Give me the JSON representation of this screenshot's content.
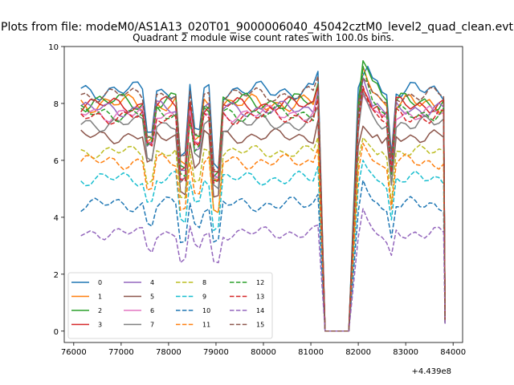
{
  "suptitle": "Plots from file: modeM0/AS1A13_020T01_9000006040_45042cztM0_level2_quad_clean.evt",
  "chart_data": {
    "type": "line",
    "title": "Quadrant 2 module wise count rates with 100.0s bins.",
    "xlabel": "",
    "ylabel": "",
    "x_offset_label": "+4.439e8",
    "x_offset": 443900000,
    "xlim": [
      75800,
      84200
    ],
    "ylim": [
      -0.4,
      10
    ],
    "xticks": [
      76000,
      77000,
      78000,
      79000,
      80000,
      81000,
      82000,
      83000,
      84000
    ],
    "xtick_labels": [
      "76000",
      "77000",
      "78000",
      "79000",
      "80000",
      "81000",
      "82000",
      "83000",
      "84000"
    ],
    "yticks": [
      0,
      2,
      4,
      6,
      8,
      10
    ],
    "ytick_labels": [
      "0",
      "2",
      "4",
      "6",
      "8",
      "10"
    ],
    "grid": false,
    "legend_position": "lower-left",
    "legend_columns": 4,
    "x_spec": {
      "segments": [
        [
          76150,
          81150,
          100
        ],
        [
          81300,
          81850,
          100
        ],
        [
          82000,
          83800,
          100
        ]
      ],
      "final": 83830
    },
    "gap_value": 0,
    "series": [
      {
        "name": "0",
        "color": "#1f77b4",
        "dash": "solid",
        "base": 8.45,
        "seg2": [
          8.55,
          9.0,
          9.3,
          8.9,
          8.8,
          8.4,
          8.3
        ],
        "final": 0.3,
        "wiggle": 0.25
      },
      {
        "name": "1",
        "color": "#ff7f0e",
        "dash": "solid",
        "base": 8.0,
        "seg2": [
          7.7,
          9.3,
          8.8,
          8.4,
          8.3,
          8.1,
          7.9
        ],
        "final": 0.4,
        "wiggle": 0.25
      },
      {
        "name": "2",
        "color": "#2ca02c",
        "dash": "solid",
        "base": 8.05,
        "seg2": [
          8.0,
          9.5,
          9.2,
          8.8,
          8.7,
          8.3,
          8.1
        ],
        "final": 0.3,
        "wiggle": 0.25
      },
      {
        "name": "3",
        "color": "#d62728",
        "dash": "solid",
        "base": 7.95,
        "seg2": [
          7.6,
          8.5,
          8.2,
          7.8,
          7.9,
          7.5,
          7.7
        ],
        "final": 0.3,
        "wiggle": 0.22
      },
      {
        "name": "4",
        "color": "#9467bd",
        "dash": "solid",
        "base": 7.8,
        "seg2": [
          7.5,
          8.9,
          8.4,
          7.9,
          8.0,
          7.8,
          7.6
        ],
        "final": 0.3,
        "wiggle": 0.22
      },
      {
        "name": "5",
        "color": "#8c564b",
        "dash": "solid",
        "base": 6.85,
        "seg2": [
          6.5,
          7.2,
          7.0,
          6.8,
          6.9,
          6.6,
          6.8
        ],
        "final": 0.3,
        "wiggle": 0.2
      },
      {
        "name": "6",
        "color": "#e377c2",
        "dash": "solid",
        "base": 7.65,
        "seg2": [
          7.2,
          8.3,
          8.0,
          7.8,
          7.7,
          7.6,
          7.5
        ],
        "final": 0.3,
        "wiggle": 0.22
      },
      {
        "name": "7",
        "color": "#7f7f7f",
        "dash": "solid",
        "base": 7.3,
        "seg2": [
          7.0,
          8.4,
          8.0,
          7.6,
          7.3,
          7.1,
          7.2
        ],
        "final": 0.3,
        "wiggle": 0.22
      },
      {
        "name": "8",
        "color": "#bcbd22",
        "dash": "dashed",
        "base": 6.3,
        "seg2": [
          6.0,
          6.8,
          6.6,
          6.4,
          6.2,
          6.3,
          6.1
        ],
        "final": 0.3,
        "wiggle": 0.18
      },
      {
        "name": "9",
        "color": "#17becf",
        "dash": "dashed",
        "base": 5.35,
        "seg2": [
          5.1,
          6.0,
          5.7,
          5.5,
          5.3,
          5.2,
          5.0
        ],
        "final": 0.3,
        "wiggle": 0.2
      },
      {
        "name": "10",
        "color": "#1f77b4",
        "dash": "dashed",
        "base": 4.45,
        "seg2": [
          4.2,
          5.3,
          4.9,
          4.6,
          4.5,
          4.3,
          4.2
        ],
        "final": 0.3,
        "wiggle": 0.2
      },
      {
        "name": "11",
        "color": "#ff7f0e",
        "dash": "dashed",
        "base": 5.95,
        "seg2": [
          5.6,
          6.6,
          6.3,
          6.0,
          5.9,
          5.8,
          5.7
        ],
        "final": 0.3,
        "wiggle": 0.2
      },
      {
        "name": "12",
        "color": "#2ca02c",
        "dash": "dashed",
        "base": 7.65,
        "seg2": [
          7.4,
          9.3,
          8.7,
          8.1,
          7.9,
          7.7,
          7.6
        ],
        "final": 0.3,
        "wiggle": 0.22
      },
      {
        "name": "13",
        "color": "#d62728",
        "dash": "dashed",
        "base": 7.55,
        "seg2": [
          7.3,
          8.6,
          8.1,
          7.8,
          7.6,
          7.4,
          7.3
        ],
        "final": 0.3,
        "wiggle": 0.22
      },
      {
        "name": "14",
        "color": "#9467bd",
        "dash": "dashed",
        "base": 3.45,
        "seg2": [
          3.3,
          4.3,
          3.9,
          3.6,
          3.4,
          3.3,
          3.1
        ],
        "final": 0.2,
        "wiggle": 0.18
      },
      {
        "name": "15",
        "color": "#8c564b",
        "dash": "dashed",
        "base": 8.3,
        "seg2": [
          8.0,
          8.9,
          8.7,
          8.4,
          8.3,
          8.1,
          8.0
        ],
        "final": 0.4,
        "wiggle": 0.22
      }
    ],
    "dips": [
      [
        77600,
        0.56
      ],
      [
        78300,
        0.2
      ],
      [
        78600,
        0.55
      ],
      [
        79000,
        0.12
      ],
      [
        82600,
        0.22
      ]
    ]
  }
}
